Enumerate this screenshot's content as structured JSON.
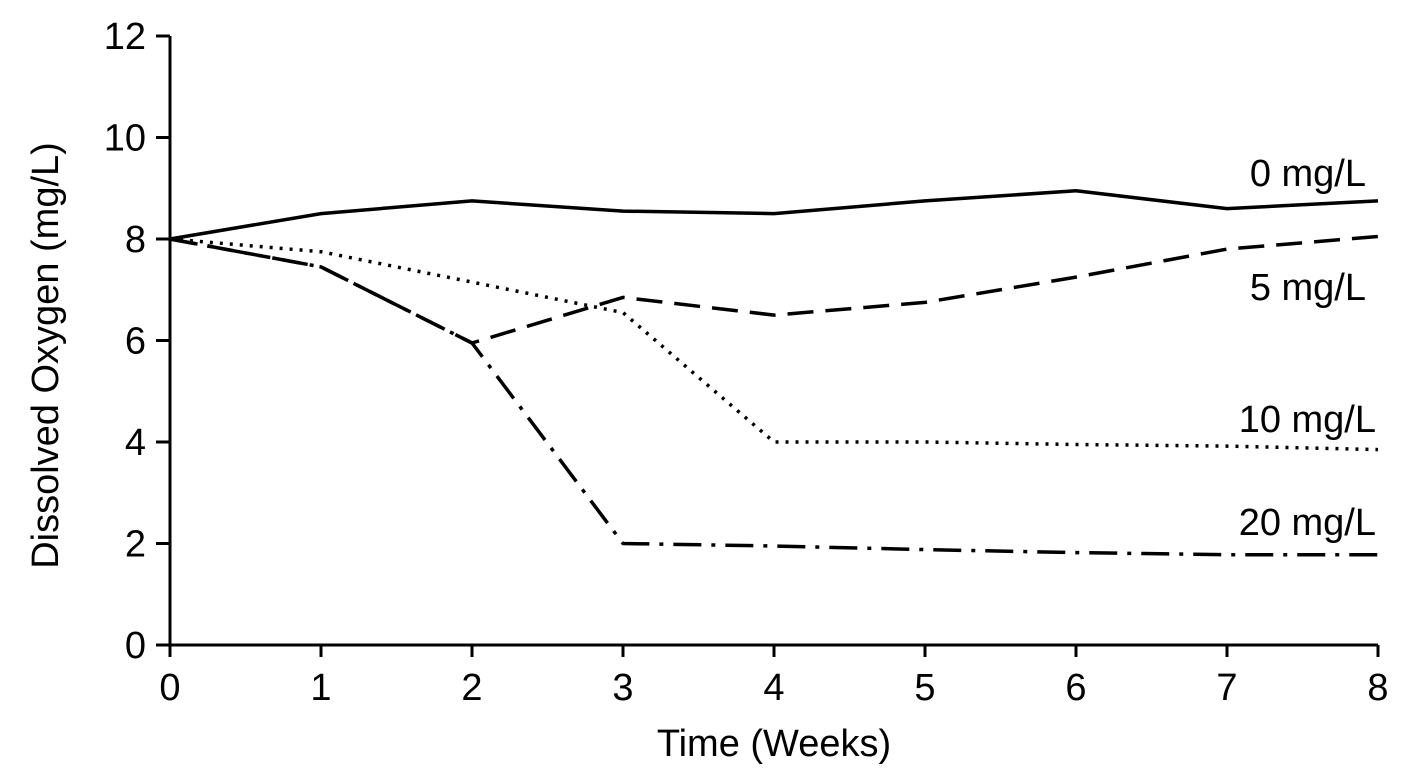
{
  "chart_data": {
    "type": "line",
    "title": "",
    "xlabel": "Time (Weeks)",
    "ylabel": "Dissolved Oxygen (mg/L)",
    "xlim": [
      0,
      8
    ],
    "ylim": [
      0,
      12
    ],
    "xticks": [
      "0",
      "1",
      "2",
      "3",
      "4",
      "5",
      "6",
      "7",
      "8"
    ],
    "yticks": [
      "0",
      "2",
      "4",
      "6",
      "8",
      "10",
      "12"
    ],
    "grid": false,
    "legend": "none",
    "series": [
      {
        "name": "0 mg/L",
        "line_style": "solid",
        "x": [
          0,
          1,
          2,
          3,
          4,
          5,
          6,
          7,
          8
        ],
        "y": [
          8.0,
          8.5,
          8.75,
          8.55,
          8.5,
          8.75,
          8.95,
          8.6,
          8.75
        ]
      },
      {
        "name": "5 mg/L",
        "line_style": "dashed",
        "x": [
          0,
          1,
          2,
          3,
          4,
          5,
          6,
          7,
          8
        ],
        "y": [
          8.0,
          7.45,
          5.95,
          6.85,
          6.5,
          6.75,
          7.25,
          7.8,
          8.05
        ]
      },
      {
        "name": "10 mg/L",
        "line_style": "dotted",
        "x": [
          0,
          1,
          2,
          3,
          4,
          5,
          6,
          7,
          8
        ],
        "y": [
          8.0,
          7.75,
          7.15,
          6.55,
          4.0,
          4.0,
          3.95,
          3.92,
          3.85
        ]
      },
      {
        "name": "20 mg/L",
        "line_style": "dash-dot",
        "x": [
          0,
          1,
          2,
          3,
          4,
          5,
          6,
          7,
          8
        ],
        "y": [
          8.0,
          7.45,
          5.95,
          2.0,
          1.95,
          1.88,
          1.82,
          1.78,
          1.78
        ]
      }
    ]
  }
}
